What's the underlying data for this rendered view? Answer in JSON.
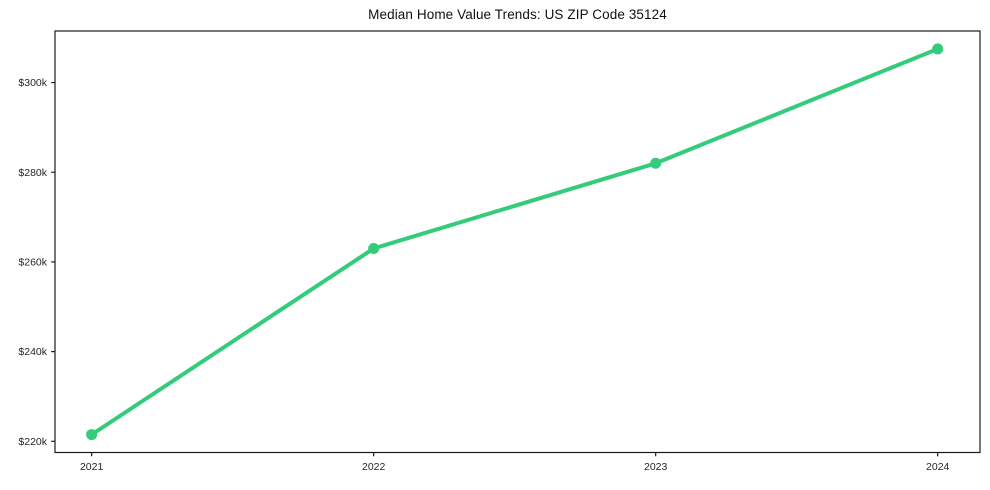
{
  "chart_data": {
    "type": "line",
    "title": "Median Home Value Trends: US ZIP Code 35124",
    "x": [
      2021,
      2022,
      2023,
      2024
    ],
    "x_tick_labels": [
      "2021",
      "2022",
      "2023",
      "2024"
    ],
    "series": [
      {
        "name": "",
        "values": [
          221500,
          263000,
          282000,
          307500
        ],
        "color": "#34cb7a",
        "marker": "circle",
        "line_width": 4,
        "marker_radius": 5.5
      }
    ],
    "y_ticks": [
      {
        "value": 220000,
        "label": "$220k"
      },
      {
        "value": 240000,
        "label": "$240k"
      },
      {
        "value": 260000,
        "label": "$260k"
      },
      {
        "value": 280000,
        "label": "$280k"
      },
      {
        "value": 300000,
        "label": "$300k"
      }
    ],
    "xlabel": "",
    "ylabel": "",
    "xlim": [
      2020.87,
      2024.15
    ],
    "ylim": [
      217500,
      311500
    ],
    "grid": false,
    "legend": "none",
    "background_color": "#ffffff",
    "spine_color": "#1a1a1a",
    "tick_label_color": "#262626",
    "title_color": "#111111"
  }
}
